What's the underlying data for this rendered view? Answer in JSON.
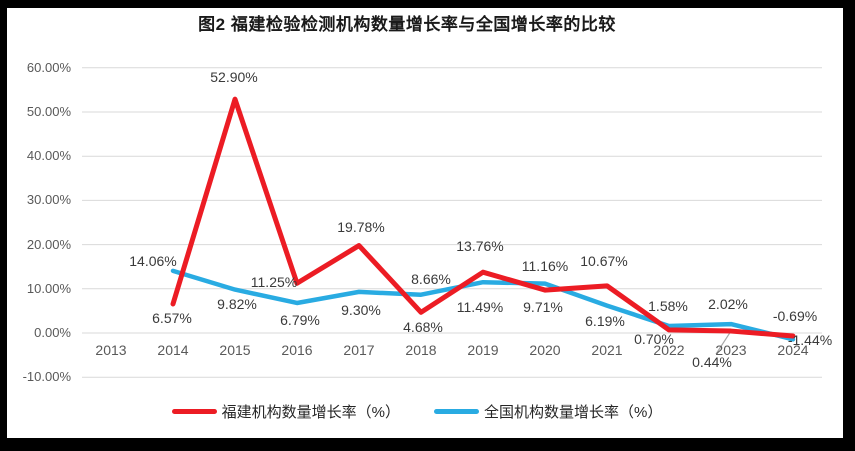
{
  "chart": {
    "title": "图2 福建检验检测机构数量增长率与全国增长率的比较"
  },
  "legend": {
    "items": [
      {
        "label": "福建机构数量增长率（%）",
        "color": "#EC1C24"
      },
      {
        "label": "全国机构数量增长率（%）",
        "color": "#29ABE2"
      }
    ]
  },
  "chart_data": {
    "type": "line",
    "title": "图2 福建检验检测机构数量增长率与全国增长率的比较",
    "xlabel": "",
    "ylabel": "",
    "grid": true,
    "grid_color": "#D9D9D9",
    "leader_color": "#A6A6A6",
    "legend_position": "bottom",
    "ylim": [
      -10,
      60
    ],
    "categories": [
      "2013",
      "2014",
      "2015",
      "2016",
      "2017",
      "2018",
      "2019",
      "2020",
      "2021",
      "2022",
      "2023",
      "2024"
    ],
    "y_axis": {
      "ticks": [
        {
          "value": 60,
          "label": "60.00%"
        },
        {
          "value": 50,
          "label": "50.00%"
        },
        {
          "value": 40,
          "label": "40.00%"
        },
        {
          "value": 30,
          "label": "30.00%"
        },
        {
          "value": 20,
          "label": "20.00%"
        },
        {
          "value": 10,
          "label": "10.00%"
        },
        {
          "value": 0,
          "label": "0.00%"
        },
        {
          "value": -10,
          "label": "-10.00%"
        }
      ]
    },
    "series": [
      {
        "name": "福建机构数量增长率（%）",
        "line_name": "fujian-series-line",
        "color": "#EC1C24",
        "stroke_width": 5,
        "values": [
          null,
          6.57,
          52.9,
          11.25,
          19.78,
          4.68,
          13.76,
          9.71,
          10.67,
          0.7,
          0.44,
          -0.69
        ],
        "labels": [
          "",
          "6.57%",
          "52.90%",
          "11.25%",
          "19.78%",
          "4.68%",
          "13.76%",
          "9.71%",
          "10.67%",
          "0.70%",
          "0.44%",
          "-0.69%"
        ],
        "label_offsets": [
          [
            0,
            0
          ],
          [
            -1,
            7
          ],
          [
            -1,
            -29
          ],
          [
            -23,
            -8
          ],
          [
            2,
            -26
          ],
          [
            2,
            8
          ],
          [
            -3,
            -33
          ],
          [
            -2,
            10
          ],
          [
            -3,
            -32
          ],
          [
            -15,
            2
          ],
          [
            -19,
            24
          ],
          [
            2,
            -27
          ]
        ]
      },
      {
        "name": "全国机构数量增长率（%）",
        "line_name": "national-series-line",
        "color": "#29ABE2",
        "stroke_width": 4.5,
        "values": [
          null,
          14.06,
          9.82,
          6.79,
          9.3,
          8.66,
          11.49,
          11.16,
          6.19,
          1.58,
          2.02,
          -1.44
        ],
        "labels": [
          "",
          "14.06%",
          "9.82%",
          "6.79%",
          "9.30%",
          "8.66%",
          "11.49%",
          "11.16%",
          "6.19%",
          "1.58%",
          "2.02%",
          "-1.44%"
        ],
        "label_offsets": [
          [
            0,
            0
          ],
          [
            -20,
            -17
          ],
          [
            2,
            7
          ],
          [
            3,
            10
          ],
          [
            2,
            11
          ],
          [
            10,
            -23
          ],
          [
            -3,
            18
          ],
          [
            0,
            -25
          ],
          [
            -2,
            8
          ],
          [
            -1,
            -27
          ],
          [
            -3,
            -27
          ],
          [
            17,
            -6
          ]
        ]
      }
    ],
    "leader": {
      "series": 0,
      "index": 10,
      "dx": -15,
      "dy": 23
    }
  }
}
